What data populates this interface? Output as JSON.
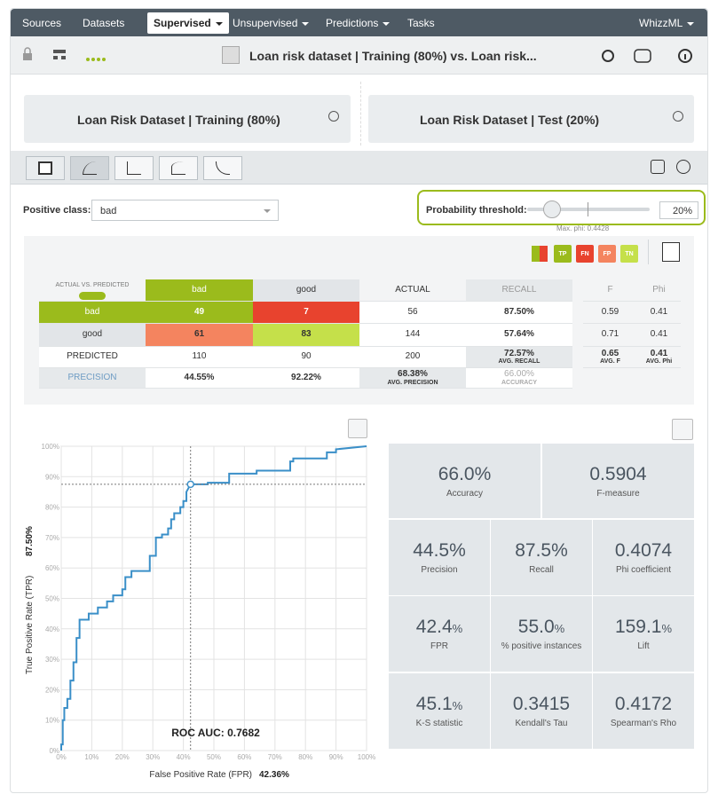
{
  "navbar": {
    "items": [
      "Sources",
      "Datasets",
      "Supervised",
      "Unsupervised",
      "Predictions",
      "Tasks"
    ],
    "right": "WhizzML"
  },
  "toolbar": {
    "title": "Loan risk dataset | Training (80%) vs. Loan risk..."
  },
  "datasets": {
    "training": "Loan Risk Dataset | Training (80%)",
    "test": "Loan Risk Dataset | Test (20%)"
  },
  "controls": {
    "positive_class_label": "Positive class:",
    "positive_class": "bad",
    "threshold_label": "Probability threshold:",
    "threshold": "20%",
    "max_phi": "Max. phi: 0.4428"
  },
  "legend": [
    "TP",
    "FN",
    "FP",
    "TN"
  ],
  "matrix": {
    "corner": "ACTUAL VS. PREDICTED",
    "columns": [
      "bad",
      "good",
      "ACTUAL",
      "RECALL"
    ],
    "side_columns": [
      "F",
      "Phi"
    ],
    "rows": [
      {
        "label": "bad",
        "cells": [
          "49",
          "7",
          "56",
          "87.50%"
        ],
        "side": [
          "0.59",
          "0.41"
        ]
      },
      {
        "label": "good",
        "cells": [
          "61",
          "83",
          "144",
          "57.64%"
        ],
        "side": [
          "0.71",
          "0.41"
        ]
      },
      {
        "label": "PREDICTED",
        "cells": [
          "110",
          "90",
          "200",
          {
            "value": "72.57%",
            "caption": "AVG. RECALL"
          }
        ],
        "side": [
          {
            "value": "0.65",
            "caption": "AVG. F"
          },
          {
            "value": "0.41",
            "caption": "AVG. Phi"
          }
        ]
      },
      {
        "label": "PRECISION",
        "cells": [
          "44.55%",
          "92.22%",
          {
            "value": "68.38%",
            "caption": "AVG. PRECISION"
          },
          {
            "value": "66.00%",
            "caption": "ACCURACY"
          }
        ]
      }
    ]
  },
  "metrics": [
    {
      "value": "66.0%",
      "label": "Accuracy"
    },
    {
      "value": "0.5904",
      "label": "F-measure"
    },
    {
      "value": "44.5%",
      "label": "Precision"
    },
    {
      "value": "87.5%",
      "label": "Recall"
    },
    {
      "value": "0.4074",
      "label": "Phi coefficient"
    },
    {
      "value": "42.4",
      "unit": "%",
      "label": "FPR"
    },
    {
      "value": "55.0",
      "unit": "%",
      "label": "% positive instances"
    },
    {
      "value": "159.1",
      "unit": "%",
      "label": "Lift"
    },
    {
      "value": "45.1",
      "unit": "%",
      "label": "K-S statistic"
    },
    {
      "value": "0.3415",
      "label": "Kendall's Tau"
    },
    {
      "value": "0.4172",
      "label": "Spearman's Rho"
    }
  ],
  "chart_data": {
    "type": "line",
    "xlabel": "False Positive Rate (FPR)",
    "ylabel": "True Positive Rate (TPR)",
    "annotation": "ROC AUC: 0.7682",
    "color": "#3a8fc8",
    "grid": true,
    "x": [
      0,
      0,
      0.5,
      0.5,
      1,
      1,
      2,
      2,
      3,
      3,
      4,
      4,
      5,
      5,
      6,
      6,
      9,
      9,
      12,
      12,
      15,
      15,
      17,
      17,
      20,
      20,
      21,
      21,
      23,
      23,
      29,
      29,
      31,
      31,
      33,
      33,
      35,
      35,
      36,
      36,
      37,
      37,
      39,
      39,
      40,
      40,
      41,
      41,
      42.36,
      48,
      48,
      55,
      55,
      64,
      64,
      75,
      75,
      76,
      76,
      87,
      87,
      90,
      90,
      100
    ],
    "values": [
      0,
      2,
      2,
      10,
      10,
      14,
      14,
      17,
      17,
      23,
      23,
      29,
      29,
      37,
      37,
      43,
      43,
      45,
      45,
      47,
      47,
      49,
      49,
      51,
      51,
      53,
      53,
      57,
      57,
      59,
      59,
      64,
      64,
      70,
      70,
      71,
      71,
      73,
      73,
      76,
      76,
      78,
      78,
      80,
      80,
      82,
      82,
      85,
      87.5,
      87.5,
      88,
      88,
      91,
      91,
      92,
      92,
      95,
      95,
      96,
      96,
      98,
      98,
      99,
      100
    ],
    "point": {
      "x": 42.36,
      "y": 87.5,
      "x_label": "42.36%",
      "y_label": "87.50%"
    },
    "xlim": [
      0,
      100
    ],
    "ylim": [
      0,
      100
    ],
    "xticks": [
      {
        "value": 0,
        "label": "0%"
      },
      {
        "value": 10,
        "label": "10%"
      },
      {
        "value": 20,
        "label": "20%"
      },
      {
        "value": 30,
        "label": "30%"
      },
      {
        "value": 40,
        "label": "40%"
      },
      {
        "value": 50,
        "label": "50%"
      },
      {
        "value": 60,
        "label": "60%"
      },
      {
        "value": 70,
        "label": "70%"
      },
      {
        "value": 80,
        "label": "80%"
      },
      {
        "value": 90,
        "label": "90%"
      },
      {
        "value": 100,
        "label": "100%"
      }
    ],
    "yticks": [
      {
        "value": 0,
        "label": "0%"
      },
      {
        "value": 10,
        "label": "10%"
      },
      {
        "value": 20,
        "label": "20%"
      },
      {
        "value": 30,
        "label": "30%"
      },
      {
        "value": 40,
        "label": "40%"
      },
      {
        "value": 50,
        "label": "50%"
      },
      {
        "value": 60,
        "label": "60%"
      },
      {
        "value": 70,
        "label": "70%"
      },
      {
        "value": 80,
        "label": "80%"
      },
      {
        "value": 90,
        "label": "90%"
      },
      {
        "value": 100,
        "label": "100%"
      }
    ]
  }
}
